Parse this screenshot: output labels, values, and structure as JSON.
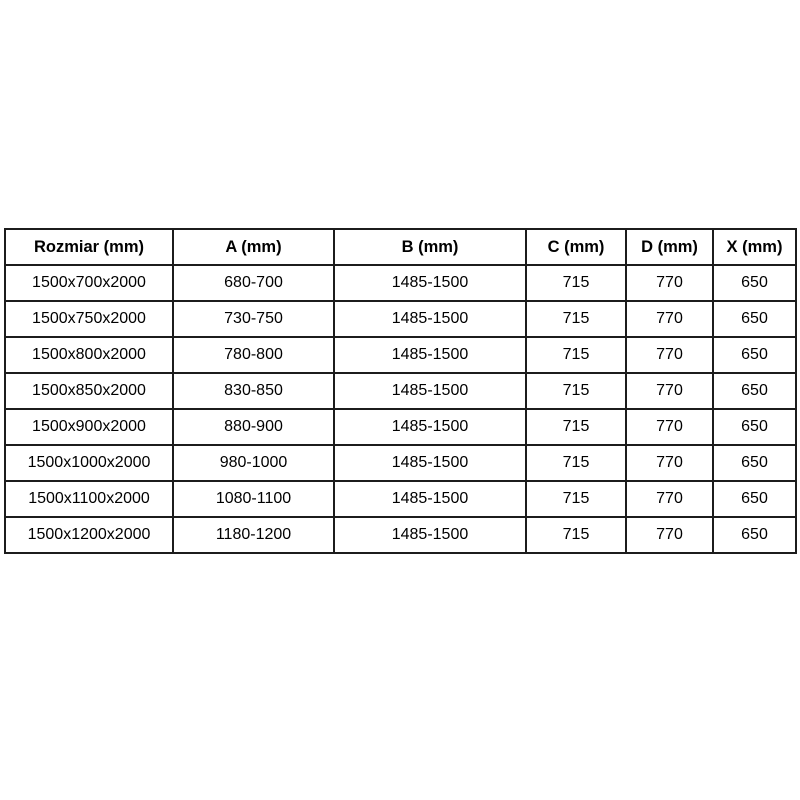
{
  "page": {
    "background_color": "#ffffff"
  },
  "table": {
    "colors": {
      "border": "#1c1c1c",
      "text": "#000000",
      "cell_background": "#ffffff"
    },
    "headers": [
      "Rozmiar (mm)",
      "A (mm)",
      "B (mm)",
      "C (mm)",
      "D (mm)",
      "X (mm)"
    ],
    "rows": [
      [
        "1500x700x2000",
        "680-700",
        "1485-1500",
        "715",
        "770",
        "650"
      ],
      [
        "1500x750x2000",
        "730-750",
        "1485-1500",
        "715",
        "770",
        "650"
      ],
      [
        "1500x800x2000",
        "780-800",
        "1485-1500",
        "715",
        "770",
        "650"
      ],
      [
        "1500x850x2000",
        "830-850",
        "1485-1500",
        "715",
        "770",
        "650"
      ],
      [
        "1500x900x2000",
        "880-900",
        "1485-1500",
        "715",
        "770",
        "650"
      ],
      [
        "1500x1000x2000",
        "980-1000",
        "1485-1500",
        "715",
        "770",
        "650"
      ],
      [
        "1500x1100x2000",
        "1080-1100",
        "1485-1500",
        "715",
        "770",
        "650"
      ],
      [
        "1500x1200x2000",
        "1180-1200",
        "1485-1500",
        "715",
        "770",
        "650"
      ]
    ]
  }
}
